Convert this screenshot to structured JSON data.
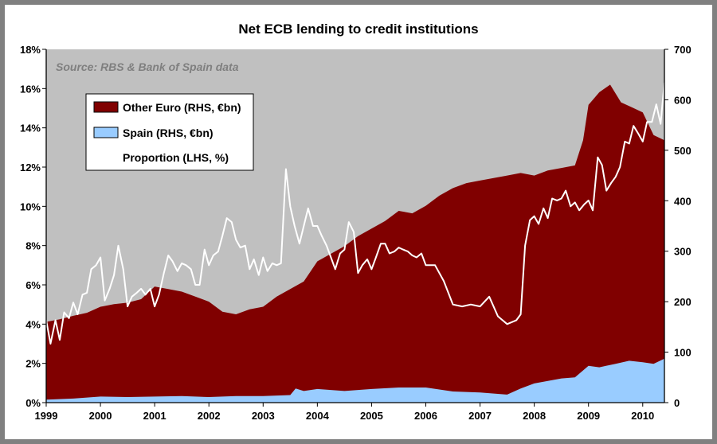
{
  "chart_data": {
    "type": "area",
    "title": "Net ECB lending to credit institutions",
    "source_note": "Source: RBS & Bank of Spain data",
    "x_ticks": [
      "1999",
      "2000",
      "2001",
      "2002",
      "2003",
      "2004",
      "2005",
      "2006",
      "2007",
      "2008",
      "2009",
      "2010"
    ],
    "xlim": [
      1999.0,
      2010.4
    ],
    "left_axis": {
      "ticks": [
        "0%",
        "2%",
        "4%",
        "6%",
        "8%",
        "10%",
        "12%",
        "14%",
        "16%",
        "18%"
      ],
      "ylim": [
        0,
        18
      ],
      "unit": "%"
    },
    "right_axis": {
      "ticks": [
        "0",
        "100",
        "200",
        "300",
        "400",
        "500",
        "600",
        "700"
      ],
      "ylim": [
        0,
        700
      ]
    },
    "plot_background": "#c0c0c0",
    "legend_placement": "upper-left",
    "series": [
      {
        "name": "Other Euro (RHS, €bn)",
        "kind": "stacked-area-total",
        "axis": "right",
        "color": "#800000",
        "x": [
          1999.0,
          1999.25,
          1999.5,
          1999.75,
          2000.0,
          2000.25,
          2000.5,
          2000.75,
          2001.0,
          2001.25,
          2001.5,
          2001.75,
          2002.0,
          2002.25,
          2002.5,
          2002.75,
          2003.0,
          2003.25,
          2003.5,
          2003.75,
          2004.0,
          2004.25,
          2004.5,
          2004.75,
          2005.0,
          2005.25,
          2005.5,
          2005.75,
          2006.0,
          2006.25,
          2006.5,
          2006.75,
          2007.0,
          2007.25,
          2007.5,
          2007.75,
          2008.0,
          2008.25,
          2008.5,
          2008.75,
          2008.9,
          2009.0,
          2009.2,
          2009.4,
          2009.6,
          2009.8,
          2010.0,
          2010.2,
          2010.4
        ],
        "values": [
          160,
          165,
          172,
          178,
          190,
          195,
          198,
          205,
          230,
          225,
          220,
          210,
          200,
          180,
          175,
          185,
          190,
          210,
          225,
          240,
          280,
          295,
          310,
          330,
          345,
          360,
          380,
          375,
          390,
          410,
          425,
          435,
          440,
          445,
          450,
          455,
          450,
          460,
          465,
          470,
          520,
          590,
          615,
          630,
          595,
          585,
          575,
          530,
          520
        ]
      },
      {
        "name": "Spain (RHS, €bn)",
        "kind": "stacked-area-base",
        "axis": "right",
        "color": "#99ccff",
        "x": [
          1999.0,
          1999.5,
          2000.0,
          2000.5,
          2001.0,
          2001.5,
          2002.0,
          2002.5,
          2003.0,
          2003.5,
          2003.6,
          2003.75,
          2004.0,
          2004.5,
          2005.0,
          2005.5,
          2006.0,
          2006.5,
          2007.0,
          2007.5,
          2007.75,
          2008.0,
          2008.5,
          2008.75,
          2009.0,
          2009.2,
          2009.5,
          2009.75,
          2010.0,
          2010.2,
          2010.4
        ],
        "values": [
          6,
          8,
          12,
          11,
          12,
          13,
          11,
          13,
          13,
          15,
          28,
          23,
          27,
          23,
          27,
          30,
          30,
          22,
          20,
          16,
          28,
          38,
          48,
          50,
          73,
          70,
          77,
          83,
          80,
          77,
          87
        ]
      },
      {
        "name": "Proportion (LHS, %)",
        "kind": "line",
        "axis": "left",
        "color": "#ffffff",
        "x": [
          1999.0,
          1999.08,
          1999.17,
          1999.25,
          1999.33,
          1999.42,
          1999.5,
          1999.58,
          1999.67,
          1999.75,
          1999.83,
          1999.92,
          2000.0,
          2000.08,
          2000.17,
          2000.25,
          2000.33,
          2000.42,
          2000.5,
          2000.58,
          2000.67,
          2000.75,
          2000.83,
          2000.92,
          2001.0,
          2001.08,
          2001.17,
          2001.25,
          2001.33,
          2001.42,
          2001.5,
          2001.58,
          2001.67,
          2001.75,
          2001.83,
          2001.92,
          2002.0,
          2002.08,
          2002.17,
          2002.25,
          2002.33,
          2002.42,
          2002.5,
          2002.58,
          2002.67,
          2002.75,
          2002.83,
          2002.92,
          2003.0,
          2003.08,
          2003.17,
          2003.25,
          2003.33,
          2003.42,
          2003.5,
          2003.58,
          2003.67,
          2003.75,
          2003.83,
          2003.92,
          2004.0,
          2004.08,
          2004.17,
          2004.25,
          2004.33,
          2004.42,
          2004.5,
          2004.58,
          2004.67,
          2004.75,
          2004.83,
          2004.92,
          2005.0,
          2005.08,
          2005.17,
          2005.25,
          2005.33,
          2005.42,
          2005.5,
          2005.58,
          2005.67,
          2005.75,
          2005.83,
          2005.92,
          2006.0,
          2006.17,
          2006.33,
          2006.5,
          2006.67,
          2006.83,
          2007.0,
          2007.17,
          2007.33,
          2007.5,
          2007.67,
          2007.75,
          2007.83,
          2007.92,
          2008.0,
          2008.08,
          2008.17,
          2008.25,
          2008.33,
          2008.42,
          2008.5,
          2008.58,
          2008.67,
          2008.75,
          2008.83,
          2008.92,
          2009.0,
          2009.08,
          2009.17,
          2009.25,
          2009.33,
          2009.42,
          2009.5,
          2009.58,
          2009.67,
          2009.75,
          2009.83,
          2009.92,
          2010.0,
          2010.08,
          2010.17,
          2010.25,
          2010.33,
          2010.4
        ],
        "values": [
          4.2,
          3.0,
          4.2,
          3.2,
          4.6,
          4.3,
          5.1,
          4.5,
          5.5,
          5.6,
          6.8,
          7.0,
          7.4,
          5.2,
          5.8,
          6.5,
          8.0,
          6.8,
          4.9,
          5.4,
          5.6,
          5.8,
          5.5,
          5.8,
          4.9,
          5.5,
          6.6,
          7.5,
          7.2,
          6.7,
          7.1,
          7.0,
          6.8,
          6.0,
          6.0,
          7.8,
          7.0,
          7.5,
          7.7,
          8.5,
          9.4,
          9.2,
          8.3,
          7.9,
          8.0,
          6.8,
          7.3,
          6.5,
          7.4,
          6.7,
          7.1,
          7.0,
          7.1,
          11.9,
          10.0,
          9.0,
          8.1,
          9.0,
          9.9,
          9.0,
          9.0,
          8.5,
          8.0,
          7.4,
          6.8,
          7.6,
          7.8,
          9.2,
          8.7,
          6.6,
          7.0,
          7.3,
          6.8,
          7.4,
          8.1,
          8.1,
          7.6,
          7.7,
          7.9,
          7.8,
          7.7,
          7.5,
          7.4,
          7.6,
          7.0,
          7.0,
          6.2,
          5.0,
          4.9,
          5.0,
          4.9,
          5.4,
          4.4,
          4.0,
          4.2,
          4.5,
          8.0,
          9.3,
          9.5,
          9.1,
          9.9,
          9.4,
          10.4,
          10.3,
          10.4,
          10.8,
          10.0,
          10.2,
          9.8,
          10.1,
          10.3,
          9.8,
          12.5,
          12.1,
          10.8,
          11.2,
          11.5,
          12.0,
          13.3,
          13.2,
          14.1,
          13.7,
          13.3,
          14.3,
          14.3,
          15.2,
          14.2,
          16.3
        ]
      }
    ]
  }
}
